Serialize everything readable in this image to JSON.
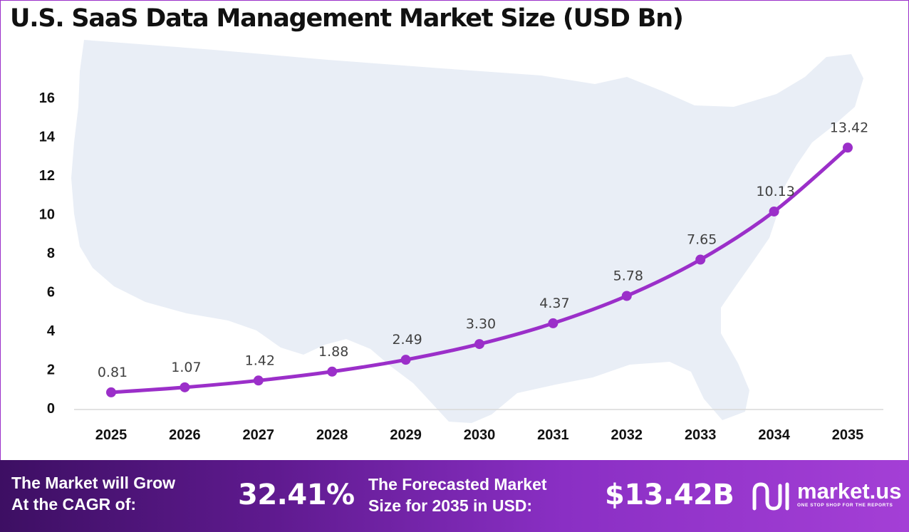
{
  "title": "U.S. SaaS Data Management Market Size (USD Bn)",
  "colors": {
    "line": "#9b2fc9",
    "map": "#e9eef6",
    "banner_start": "#3d0f63",
    "banner_end": "#a43fd6"
  },
  "chart_data": {
    "type": "line",
    "title": "U.S. SaaS Data Management Market Size (USD Bn)",
    "xlabel": "",
    "ylabel": "",
    "categories": [
      "2025",
      "2026",
      "2027",
      "2028",
      "2029",
      "2030",
      "2031",
      "2032",
      "2033",
      "2034",
      "2035"
    ],
    "series": [
      {
        "values": [
          0.81,
          1.07,
          1.42,
          1.88,
          2.49,
          3.3,
          4.37,
          5.78,
          7.65,
          10.13,
          13.42
        ],
        "labels": [
          "0.81",
          "1.07",
          "1.42",
          "1.88",
          "2.49",
          "3.30",
          "4.37",
          "5.78",
          "7.65",
          "10.13",
          "13.42"
        ]
      }
    ],
    "ylim": [
      0,
      16
    ],
    "yticks": [
      "0",
      "2",
      "4",
      "6",
      "8",
      "10",
      "12",
      "14",
      "16"
    ],
    "grid": false,
    "legend": "none"
  },
  "banner": {
    "cagr_text": "The Market will Grow\nAt the CAGR of:",
    "cagr_value": "32.41%",
    "forecast_text": "The Forecasted Market\nSize for 2035 in USD:",
    "forecast_value": "$13.42B",
    "brand_name": "market.us",
    "brand_tagline": "ONE STOP SHOP FOR THE REPORTS",
    "brand_icon": "market-us-logo-icon"
  }
}
